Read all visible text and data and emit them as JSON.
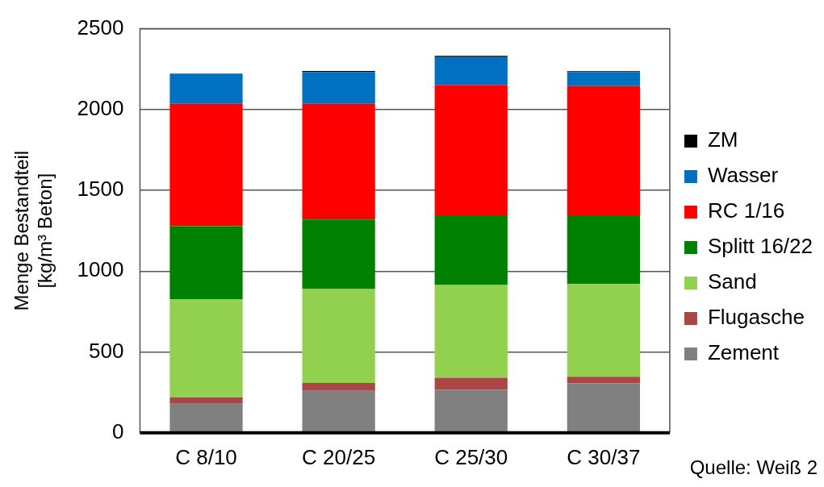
{
  "chart_data": {
    "type": "bar",
    "stacked": true,
    "ylabel": "Menge Bestandteil\n[kg/m³ Beton]",
    "categories": [
      "C 8/10",
      "C 20/25",
      "C 25/30",
      "C 30/37"
    ],
    "series": [
      {
        "name": "Zement",
        "color": "#808080",
        "values": [
          180,
          260,
          266,
          306
        ]
      },
      {
        "name": "Flugasche",
        "color": "#a94646",
        "values": [
          40,
          48,
          75,
          41
        ]
      },
      {
        "name": "Sand",
        "color": "#92d050",
        "values": [
          607,
          581,
          573,
          574
        ]
      },
      {
        "name": "Splitt 16/22",
        "color": "#008000",
        "values": [
          452,
          430,
          432,
          420
        ]
      },
      {
        "name": "RC 1/16",
        "color": "#ff0000",
        "values": [
          756,
          716,
          804,
          804
        ]
      },
      {
        "name": "Wasser",
        "color": "#0070c0",
        "values": [
          188,
          198,
          175,
          87
        ]
      },
      {
        "name": "ZM",
        "color": "#000000",
        "values": [
          0,
          6,
          7,
          6
        ]
      }
    ],
    "ylim": [
      0,
      2500
    ],
    "yticks": [
      0,
      500,
      1000,
      1500,
      2000,
      2500
    ],
    "grid": "y",
    "legend": "right",
    "annotations": [
      "Quelle: Weiß 2"
    ]
  }
}
